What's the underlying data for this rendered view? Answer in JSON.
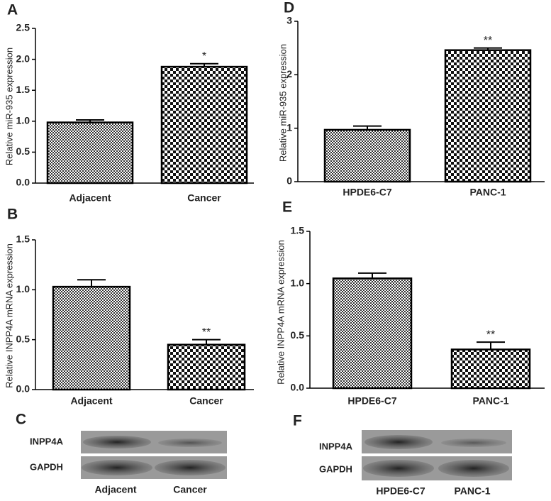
{
  "chart_data": [
    {
      "type": "bar",
      "panel": "A",
      "ylabel": "Relative miR-935 expression",
      "categories": [
        "Adjacent",
        "Cancer"
      ],
      "values": [
        0.98,
        1.88
      ],
      "errors": [
        0.04,
        0.05
      ],
      "annotations": [
        null,
        "*"
      ],
      "ylim": [
        0,
        2.5
      ],
      "yticks": [
        {
          "value": 0,
          "label": "0.0"
        },
        0.5,
        {
          "value": 1,
          "label": "1.0"
        },
        1.5,
        {
          "value": 2,
          "label": "2.0"
        },
        2.5
      ]
    },
    {
      "type": "bar",
      "panel": "B",
      "ylabel": "Relative INPP4A mRNA expression",
      "categories": [
        "Adjacent",
        "Cancer"
      ],
      "values": [
        1.03,
        0.45
      ],
      "errors": [
        0.07,
        0.05
      ],
      "annotations": [
        null,
        "**"
      ],
      "ylim": [
        0,
        1.5
      ],
      "yticks": [
        {
          "value": 0,
          "label": "0.0"
        },
        0.5,
        {
          "value": 1,
          "label": "1.0"
        },
        1.5
      ]
    },
    {
      "type": "bar",
      "panel": "D",
      "ylabel": "Relative miR-935 expression",
      "categories": [
        "HPDE6-C7",
        "PANC-1"
      ],
      "values": [
        0.97,
        2.46
      ],
      "errors": [
        0.07,
        0.04
      ],
      "annotations": [
        null,
        "**"
      ],
      "ylim": [
        0,
        3
      ],
      "yticks": [
        0,
        1,
        2,
        3
      ]
    },
    {
      "type": "bar",
      "panel": "E",
      "ylabel": "Relative INPP4A mRNA expression",
      "categories": [
        "HPDE6-C7",
        "PANC-1"
      ],
      "values": [
        1.05,
        0.37
      ],
      "errors": [
        0.05,
        0.07
      ],
      "annotations": [
        null,
        "**"
      ],
      "ylim": [
        0,
        1.5
      ],
      "yticks": [
        {
          "value": 0,
          "label": "0.0"
        },
        0.5,
        {
          "value": 1,
          "label": "1.0"
        },
        1.5
      ]
    }
  ],
  "blots": [
    {
      "panel": "C",
      "rows": [
        "INPP4A",
        "GAPDH"
      ],
      "lanes": [
        "Adjacent",
        "Cancer"
      ]
    },
    {
      "panel": "F",
      "rows": [
        "INPP4A",
        "GAPDH"
      ],
      "lanes": [
        "HPDE6-C7",
        "PANC-1"
      ]
    }
  ]
}
